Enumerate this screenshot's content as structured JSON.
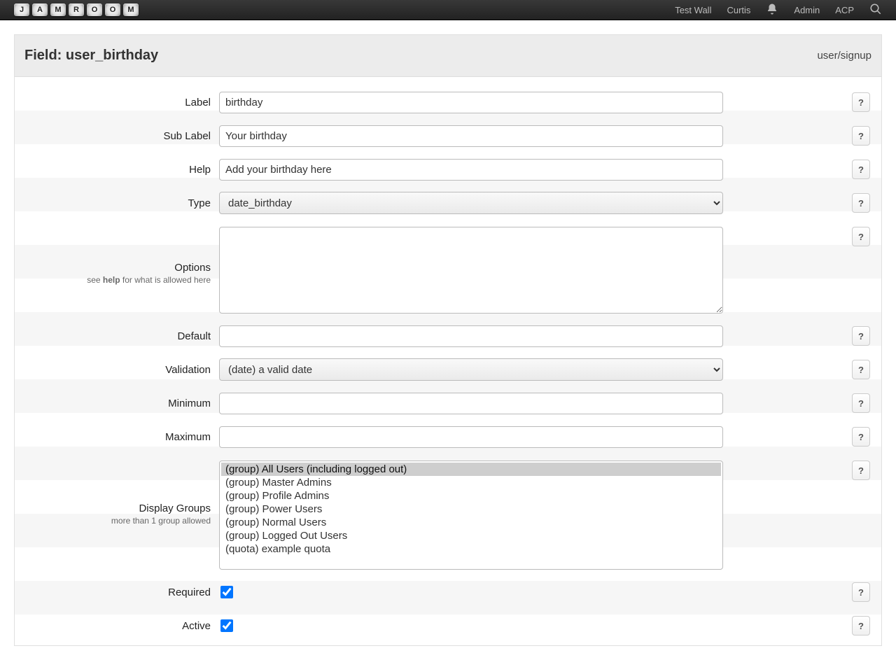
{
  "topbar": {
    "logo_letters": [
      "J",
      "A",
      "M",
      "R",
      "O",
      "O",
      "M"
    ],
    "nav": [
      "Test Wall",
      "Curtis",
      "Admin",
      "ACP"
    ]
  },
  "panel": {
    "title": "Field: user_birthday",
    "breadcrumb": "user/signup"
  },
  "form": {
    "label": {
      "label": "Label",
      "value": "birthday"
    },
    "sublabel": {
      "label": "Sub Label",
      "value": "Your birthday"
    },
    "help": {
      "label": "Help",
      "value": "Add your birthday here"
    },
    "type": {
      "label": "Type",
      "value": "date_birthday"
    },
    "options": {
      "label": "Options",
      "sub_pre": "see ",
      "sub_bold": "help",
      "sub_post": " for what is allowed here",
      "value": ""
    },
    "default": {
      "label": "Default",
      "value": ""
    },
    "validation": {
      "label": "Validation",
      "value": "(date) a valid date"
    },
    "minimum": {
      "label": "Minimum",
      "value": ""
    },
    "maximum": {
      "label": "Maximum",
      "value": ""
    },
    "groups": {
      "label": "Display Groups",
      "sub": "more than 1 group allowed",
      "options": [
        "(group) All Users (including logged out)",
        "(group) Master Admins",
        "(group) Profile Admins",
        "(group) Power Users",
        "(group) Normal Users",
        "(group) Logged Out Users",
        "(quota) example quota"
      ],
      "selected_index": 0
    },
    "required": {
      "label": "Required",
      "checked": true
    },
    "active": {
      "label": "Active",
      "checked": true
    }
  },
  "help_btn": "?"
}
